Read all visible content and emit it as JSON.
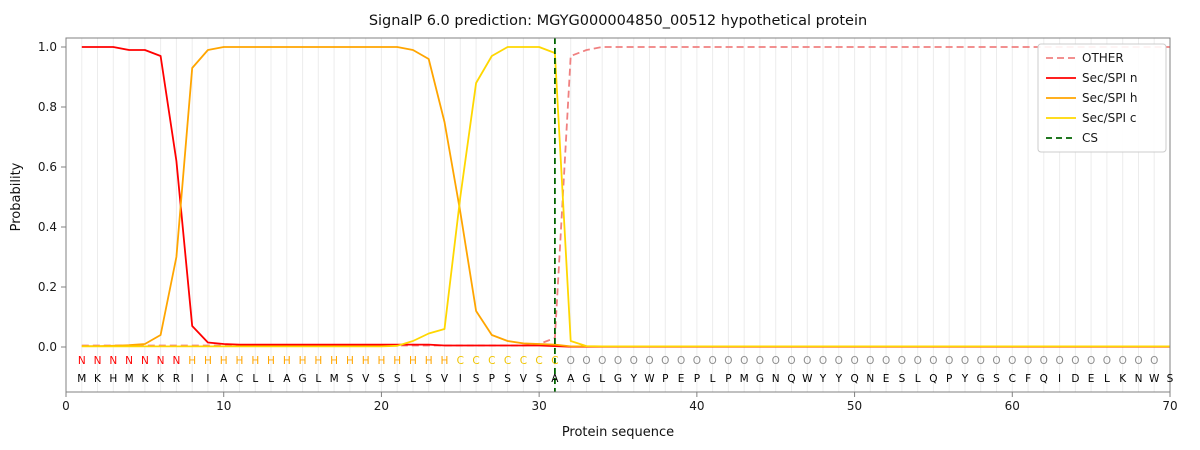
{
  "chart_data": {
    "type": "line",
    "title": "SignalP 6.0 prediction: MGYG000004850_00512 hypothetical protein",
    "xlabel": "Protein sequence",
    "ylabel": "Probability",
    "xlim": [
      0,
      70
    ],
    "ylim": [
      -0.15,
      1.05
    ],
    "x_ticks": [
      0,
      10,
      20,
      30,
      40,
      50,
      60,
      70
    ],
    "y_ticks": [
      0.0,
      0.2,
      0.4,
      0.6,
      0.8,
      1.0
    ],
    "grid": "vertical gridline per residue, no horizontal gridlines",
    "legend_position": "upper right",
    "x": [
      1,
      2,
      3,
      4,
      5,
      6,
      7,
      8,
      9,
      10,
      11,
      12,
      13,
      14,
      15,
      16,
      17,
      18,
      19,
      20,
      21,
      22,
      23,
      24,
      25,
      26,
      27,
      28,
      29,
      30,
      31,
      32,
      33,
      34,
      35,
      36,
      37,
      38,
      39,
      40,
      41,
      42,
      43,
      44,
      45,
      46,
      47,
      48,
      49,
      50,
      51,
      52,
      53,
      54,
      55,
      56,
      57,
      58,
      59,
      60,
      61,
      62,
      63,
      64,
      65,
      66,
      67,
      68,
      69,
      70
    ],
    "series": [
      {
        "name": "OTHER",
        "color": "#f08080",
        "dash": "7 4",
        "values": [
          0.005,
          0.005,
          0.005,
          0.005,
          0.005,
          0.005,
          0.005,
          0.005,
          0.005,
          0.005,
          0.005,
          0.005,
          0.005,
          0.005,
          0.005,
          0.005,
          0.005,
          0.005,
          0.005,
          0.005,
          0.005,
          0.005,
          0.005,
          0.005,
          0.005,
          0.005,
          0.005,
          0.005,
          0.005,
          0.01,
          0.03,
          0.97,
          0.99,
          1.0,
          1.0,
          1.0,
          1.0,
          1.0,
          1.0,
          1.0,
          1.0,
          1.0,
          1.0,
          1.0,
          1.0,
          1.0,
          1.0,
          1.0,
          1.0,
          1.0,
          1.0,
          1.0,
          1.0,
          1.0,
          1.0,
          1.0,
          1.0,
          1.0,
          1.0,
          1.0,
          1.0,
          1.0,
          1.0,
          1.0,
          1.0,
          1.0,
          1.0,
          1.0,
          1.0,
          1.0
        ]
      },
      {
        "name": "Sec/SPI n",
        "color": "#ff0000",
        "dash": null,
        "values": [
          1.0,
          1.0,
          1.0,
          0.99,
          0.99,
          0.97,
          0.62,
          0.07,
          0.015,
          0.01,
          0.008,
          0.008,
          0.008,
          0.008,
          0.008,
          0.008,
          0.008,
          0.008,
          0.008,
          0.008,
          0.008,
          0.008,
          0.008,
          0.005,
          0.005,
          0.005,
          0.005,
          0.005,
          0.005,
          0.005,
          0.003,
          0.001,
          0.001,
          0.001,
          0.001,
          0.001,
          0.001,
          0.001,
          0.001,
          0.001,
          0.001,
          0.001,
          0.001,
          0.001,
          0.001,
          0.001,
          0.001,
          0.001,
          0.001,
          0.001,
          0.001,
          0.001,
          0.001,
          0.001,
          0.001,
          0.001,
          0.001,
          0.001,
          0.001,
          0.001,
          0.001,
          0.001,
          0.001,
          0.001,
          0.001,
          0.001,
          0.001,
          0.001,
          0.001,
          0.001
        ]
      },
      {
        "name": "Sec/SPI h",
        "color": "#ffa500",
        "dash": null,
        "values": [
          0.003,
          0.003,
          0.004,
          0.006,
          0.01,
          0.04,
          0.3,
          0.93,
          0.99,
          1.0,
          1.0,
          1.0,
          1.0,
          1.0,
          1.0,
          1.0,
          1.0,
          1.0,
          1.0,
          1.0,
          1.0,
          0.99,
          0.96,
          0.75,
          0.45,
          0.12,
          0.04,
          0.02,
          0.012,
          0.01,
          0.008,
          0.002,
          0.002,
          0.002,
          0.002,
          0.002,
          0.002,
          0.002,
          0.002,
          0.002,
          0.002,
          0.002,
          0.002,
          0.002,
          0.002,
          0.002,
          0.002,
          0.002,
          0.002,
          0.002,
          0.002,
          0.002,
          0.002,
          0.002,
          0.002,
          0.002,
          0.002,
          0.002,
          0.002,
          0.002,
          0.002,
          0.002,
          0.002,
          0.002,
          0.002,
          0.002,
          0.002,
          0.002,
          0.002,
          0.002
        ]
      },
      {
        "name": "Sec/SPI c",
        "color": "#ffd700",
        "dash": null,
        "values": [
          0.002,
          0.002,
          0.002,
          0.002,
          0.002,
          0.002,
          0.002,
          0.002,
          0.002,
          0.002,
          0.002,
          0.002,
          0.002,
          0.002,
          0.002,
          0.002,
          0.002,
          0.002,
          0.002,
          0.002,
          0.004,
          0.02,
          0.045,
          0.06,
          0.5,
          0.88,
          0.97,
          1.0,
          1.0,
          1.0,
          0.98,
          0.02,
          0.003,
          0.002,
          0.002,
          0.002,
          0.002,
          0.002,
          0.002,
          0.002,
          0.002,
          0.002,
          0.002,
          0.002,
          0.002,
          0.002,
          0.002,
          0.002,
          0.002,
          0.002,
          0.002,
          0.002,
          0.002,
          0.002,
          0.002,
          0.002,
          0.002,
          0.002,
          0.002,
          0.002,
          0.002,
          0.002,
          0.002,
          0.002,
          0.002,
          0.002,
          0.002,
          0.002,
          0.002,
          0.002
        ]
      }
    ],
    "cs_line": {
      "name": "CS",
      "position": 31,
      "color": "#006400",
      "dash": "6 4"
    },
    "sequence": "MKHMKKRIIACLLAGLMSVSSLSVISPSVSAAGLGYWPEPLPMGNQWYYQNESLQPYGSCFQIDELKNWS",
    "region_labels": "NNNNNNNHHHHHHHHHHHHHHHHHCCCCCCCOOOOOOOOOOOOOOOOOOOOOOOOOOOOOOOOOOOOOO",
    "style": {
      "grid_color": "#ececec",
      "spine_color": "#808080",
      "text_color": "#1a1a1a",
      "sequence_color": "#000000",
      "legend_border": "#cccccc",
      "region_label_colors": {
        "N": "#ff0000",
        "H": "#ffa500",
        "C": "#f0c400",
        "O": "#8f8f8f"
      }
    }
  }
}
